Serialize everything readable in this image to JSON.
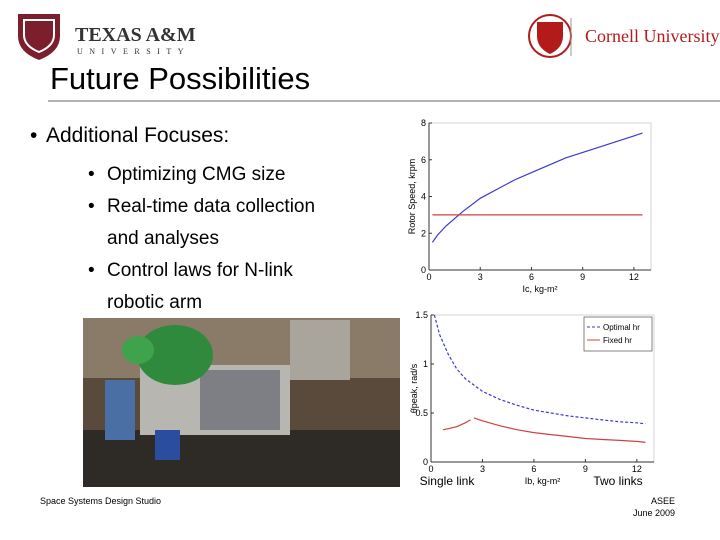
{
  "header": {
    "left_logo": {
      "name": "TEXAS A&M",
      "sub": "UNIVERSITY"
    },
    "right_logo": {
      "name": "Cornell University"
    }
  },
  "title": "Future Possibilities",
  "bullet": "Additional Focuses:",
  "sub_bullets": [
    [
      "Optimizing CMG size"
    ],
    [
      "Real-time data collection",
      "and analyses"
    ],
    [
      "Control laws for N-link",
      "robotic arm"
    ]
  ],
  "chart_data": [
    {
      "type": "line",
      "ylabel": "Rotor Speed, krpm",
      "xlabel": "Ic, kg-m²",
      "xlim": [
        0,
        13
      ],
      "xticks": [
        0,
        3,
        6,
        9,
        12
      ],
      "ylim": [
        0,
        8
      ],
      "yticks": [
        0,
        2,
        4,
        6,
        8
      ],
      "series": [
        {
          "color": "#3a3ad0",
          "line_style": "solid",
          "x": [
            0.2,
            0.5,
            1,
            2,
            3,
            4,
            5,
            6,
            7,
            8,
            9,
            10,
            11,
            12,
            12.5
          ],
          "values": [
            1.5,
            1.9,
            2.4,
            3.2,
            3.9,
            4.4,
            4.9,
            5.3,
            5.7,
            6.1,
            6.4,
            6.7,
            7.0,
            7.3,
            7.45
          ]
        },
        {
          "color": "#d04040",
          "line_style": "solid",
          "x": [
            0.2,
            12.5
          ],
          "values": [
            3,
            3
          ]
        }
      ]
    },
    {
      "type": "line",
      "ylabel": "θ̇peak, rad/s",
      "xlabel": "Ib, kg-m²",
      "xlim": [
        0,
        13
      ],
      "xticks": [
        0,
        3,
        6,
        9,
        12
      ],
      "ylim": [
        0,
        1.5
      ],
      "yticks": [
        0,
        0.5,
        1,
        1.5
      ],
      "legend": "upper right",
      "series": [
        {
          "name": "Optimal hr",
          "color": "#3a3ad0",
          "line_style": "dashed",
          "x": [
            0.2,
            0.5,
            1,
            1.5,
            2,
            3,
            4,
            5,
            6,
            7,
            8,
            9,
            10,
            11,
            12,
            12.5
          ],
          "values": [
            1.5,
            1.3,
            1.1,
            0.95,
            0.85,
            0.72,
            0.64,
            0.58,
            0.53,
            0.5,
            0.47,
            0.45,
            0.43,
            0.41,
            0.4,
            0.39
          ]
        },
        {
          "name": "Fixed hr",
          "color": "#d04040",
          "line_style": "solid",
          "x": [
            0.7,
            1,
            1.5,
            2,
            2.3,
            2.4,
            2.5,
            3,
            4,
            5,
            6,
            7,
            8,
            9,
            10,
            11,
            12,
            12.5
          ],
          "values": [
            0.33,
            0.34,
            0.36,
            0.4,
            0.43,
            null,
            0.45,
            0.42,
            0.37,
            0.33,
            0.3,
            0.28,
            0.26,
            0.24,
            0.23,
            0.22,
            0.21,
            0.2
          ]
        }
      ]
    }
  ],
  "chart_labels": [
    "Single link",
    "Two links"
  ],
  "footer": {
    "left": "Space Systems Design Studio",
    "right": [
      "ASEE",
      "June 2009"
    ]
  }
}
